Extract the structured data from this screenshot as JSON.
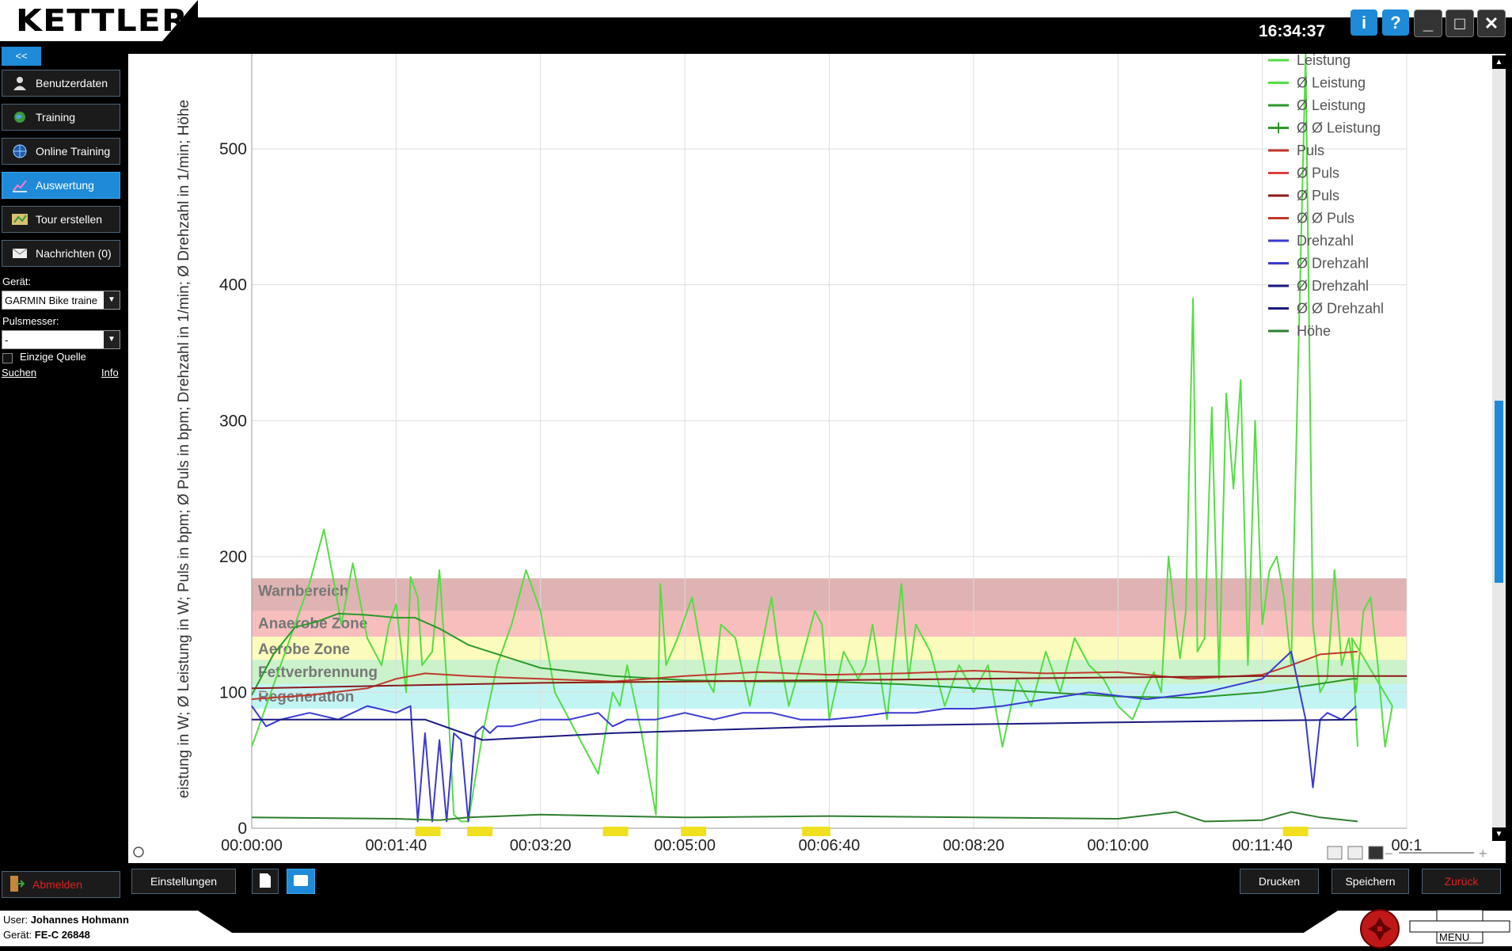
{
  "app": {
    "brand": "KETTLER",
    "clock": "16:34:37"
  },
  "window_buttons": {
    "info": "i",
    "help": "?",
    "minimize": "_",
    "maximize": "□",
    "close": "✕"
  },
  "sidebar": {
    "collapse_label": "<<",
    "nav": [
      {
        "label": "Benutzerdaten",
        "icon": "user-icon"
      },
      {
        "label": "Training",
        "icon": "globe-icon"
      },
      {
        "label": "Online Training",
        "icon": "globe-network-icon"
      },
      {
        "label": "Auswertung",
        "icon": "evaluation-chart-icon",
        "active": true
      },
      {
        "label": "Tour erstellen",
        "icon": "map-icon"
      },
      {
        "label": "Nachrichten (0)",
        "icon": "mail-icon"
      }
    ],
    "device_label": "Gerät:",
    "device_value": "GARMIN Bike traine",
    "hr_label": "Pulsmesser:",
    "hr_value": "-",
    "single_source_label": "Einzige Quelle",
    "search_link": "Suchen",
    "info_link": "Info",
    "logout_label": "Abmelden"
  },
  "bottom_buttons": {
    "settings": "Einstellungen",
    "print": "Drucken",
    "save": "Speichern",
    "back": "Zurück"
  },
  "footer": {
    "user_label": "User:",
    "user_name": "Johannes Hohmann",
    "device_label": "Gerät:",
    "device_name": "FE-C 26848",
    "menu_label": "MENU"
  },
  "colors": {
    "accent": "#1e8ad8",
    "logout": "#e02020",
    "leistung": "#55dd44",
    "avg_leistung": "#2a9a2a",
    "puls": "#c0392b",
    "drehzahl": "#3a3ad0",
    "hoehe": "#2f7d2f"
  },
  "chart_data": {
    "type": "line",
    "ylabel": "eistung in W; Ø Leistung in W; Puls in bpm; Ø Puls in bpm; Drehzahl in 1/min; Ø Drehzahl in 1/min; Höhe",
    "x_ticks": [
      "00:00:00",
      "00:01:40",
      "00:03:20",
      "00:05:00",
      "00:06:40",
      "00:08:20",
      "00:10:00",
      "00:11:40",
      "00:1"
    ],
    "y_ticks": [
      0,
      100,
      200,
      300,
      400,
      500
    ],
    "xlim": [
      0,
      800
    ],
    "ylim": [
      0,
      570
    ],
    "grid": true,
    "legend_position": "top-right",
    "zones": [
      {
        "label": "Warnbereich",
        "from": 160,
        "to": 184,
        "color": "#d9a6a6"
      },
      {
        "label": "Anaerobe Zone",
        "from": 141,
        "to": 160,
        "color": "#f7b3b3"
      },
      {
        "label": "Aerobe Zone",
        "from": 124,
        "to": 141,
        "color": "#fafab0"
      },
      {
        "label": "Fettverbrennung",
        "from": 106,
        "to": 124,
        "color": "#c2f0c2"
      },
      {
        "label": "Regeneration",
        "from": 88,
        "to": 106,
        "color": "#b8f2f2"
      }
    ],
    "legend": [
      {
        "name": "Leistung",
        "color": "#55dd44",
        "marker": "line"
      },
      {
        "name": "Ø Leistung",
        "color": "#55dd44",
        "marker": "line"
      },
      {
        "name": "Ø Leistung",
        "color": "#2a9a2a",
        "marker": "line"
      },
      {
        "name": "Ø Ø Leistung",
        "color": "#2a9a2a",
        "marker": "plus"
      },
      {
        "name": "Puls",
        "color": "#c0392b",
        "marker": "line"
      },
      {
        "name": "Ø Puls",
        "color": "#e04040",
        "marker": "line"
      },
      {
        "name": "Ø Puls",
        "color": "#8b1a1a",
        "marker": "line"
      },
      {
        "name": "Ø Ø Puls",
        "color": "#c0392b",
        "marker": "line"
      },
      {
        "name": "Drehzahl",
        "color": "#3a3ad0",
        "marker": "line"
      },
      {
        "name": "Ø Drehzahl",
        "color": "#3a3ad0",
        "marker": "line"
      },
      {
        "name": "Ø Drehzahl",
        "color": "#1a1a80",
        "marker": "line"
      },
      {
        "name": "Ø Ø Drehzahl",
        "color": "#1a1a80",
        "marker": "line"
      },
      {
        "name": "Höhe",
        "color": "#2f7d2f",
        "marker": "line"
      }
    ],
    "series": [
      {
        "name": "Leistung",
        "color": "#55dd44",
        "width": 2,
        "x": [
          0,
          10,
          20,
          30,
          40,
          50,
          58,
          62,
          70,
          80,
          90,
          95,
          100,
          107,
          110,
          115,
          118,
          125,
          130,
          135,
          140,
          145,
          150,
          160,
          170,
          180,
          190,
          200,
          210,
          220,
          230,
          240,
          250,
          255,
          260,
          270,
          280,
          283,
          287,
          295,
          305,
          315,
          320,
          325,
          335,
          345,
          360,
          365,
          372,
          380,
          390,
          395,
          400,
          410,
          420,
          425,
          430,
          440,
          450,
          455,
          460,
          470,
          480,
          490,
          500,
          510,
          520,
          530,
          540,
          550,
          560,
          570,
          580,
          590,
          600,
          610,
          620,
          625,
          630,
          635,
          640,
          643,
          647,
          652,
          655,
          660,
          665,
          670,
          675,
          680,
          685,
          690,
          695,
          700,
          705,
          710,
          715,
          720,
          725,
          730,
          735,
          740,
          745,
          750,
          755,
          760,
          765,
          770,
          775,
          780,
          785,
          790,
          762,
          766
        ],
        "y": [
          60,
          90,
          120,
          150,
          180,
          220,
          175,
          150,
          195,
          140,
          120,
          150,
          165,
          100,
          185,
          170,
          120,
          130,
          190,
          110,
          10,
          5,
          5,
          70,
          120,
          150,
          190,
          160,
          100,
          80,
          60,
          40,
          100,
          90,
          120,
          70,
          10,
          180,
          120,
          140,
          170,
          110,
          100,
          150,
          140,
          90,
          170,
          130,
          90,
          120,
          160,
          150,
          80,
          130,
          110,
          120,
          150,
          80,
          180,
          110,
          150,
          130,
          90,
          120,
          100,
          120,
          60,
          110,
          90,
          130,
          100,
          140,
          120,
          110,
          90,
          80,
          105,
          115,
          100,
          200,
          150,
          125,
          160,
          390,
          130,
          140,
          310,
          110,
          320,
          250,
          330,
          120,
          300,
          150,
          190,
          200,
          170,
          120,
          350,
          600,
          150,
          100,
          110,
          190,
          120,
          140,
          100,
          160,
          170,
          120,
          60,
          90,
          140,
          60
        ],
        "note": "approximate visual trace"
      },
      {
        "name": "Ø Leistung",
        "color": "#2a9a2a",
        "width": 2,
        "x": [
          0,
          15,
          30,
          45,
          60,
          80,
          100,
          113,
          130,
          150,
          200,
          250,
          300,
          350,
          400,
          450,
          500,
          550,
          600,
          650,
          700,
          750,
          762,
          766
        ],
        "y": [
          98,
          128,
          148,
          152,
          158,
          157,
          155,
          155,
          147,
          135,
          118,
          112,
          109,
          108,
          108,
          106,
          103,
          100,
          97,
          96,
          100,
          108,
          110,
          110
        ]
      },
      {
        "name": "Puls",
        "color": "#c0392b",
        "width": 2,
        "x": [
          0,
          40,
          80,
          100,
          120,
          150,
          200,
          250,
          300,
          350,
          400,
          450,
          500,
          550,
          600,
          650,
          700,
          720,
          740,
          766
        ],
        "y": [
          95,
          98,
          103,
          110,
          114,
          112,
          110,
          108,
          112,
          115,
          113,
          114,
          116,
          114,
          115,
          110,
          113,
          120,
          128,
          130
        ]
      },
      {
        "name": "Ø Puls",
        "color": "#8b1a1a",
        "width": 2,
        "x": [
          0,
          100,
          200,
          300,
          400,
          500,
          600,
          700,
          800
        ],
        "y": [
          103,
          105,
          107,
          108,
          109,
          110,
          111,
          112,
          112
        ]
      },
      {
        "name": "Drehzahl",
        "color": "#3a3ad0",
        "width": 2,
        "x": [
          0,
          10,
          20,
          40,
          60,
          80,
          100,
          110,
          115,
          120,
          125,
          130,
          135,
          140,
          145,
          150,
          155,
          160,
          165,
          170,
          180,
          200,
          220,
          240,
          250,
          260,
          280,
          300,
          320,
          340,
          360,
          380,
          400,
          420,
          440,
          460,
          480,
          500,
          520,
          550,
          580,
          620,
          660,
          700,
          720,
          730,
          735,
          740,
          745,
          755,
          765
        ],
        "y": [
          90,
          75,
          80,
          85,
          80,
          90,
          85,
          90,
          5,
          70,
          5,
          65,
          5,
          70,
          65,
          5,
          70,
          75,
          70,
          75,
          75,
          80,
          80,
          85,
          75,
          80,
          80,
          85,
          80,
          85,
          85,
          80,
          80,
          82,
          85,
          85,
          88,
          88,
          90,
          95,
          100,
          95,
          100,
          110,
          130,
          80,
          30,
          80,
          85,
          80,
          90
        ],
        "note": "approximate visual trace"
      },
      {
        "name": "Ø Drehzahl",
        "color": "#1a1a80",
        "width": 2,
        "x": [
          0,
          120,
          160,
          250,
          400,
          600,
          766
        ],
        "y": [
          80,
          80,
          65,
          70,
          75,
          78,
          80
        ]
      },
      {
        "name": "Höhe",
        "color": "#2f7d2f",
        "width": 2,
        "x": [
          0,
          100,
          130,
          150,
          200,
          300,
          400,
          500,
          600,
          640,
          660,
          700,
          720,
          740,
          766
        ],
        "y": [
          8,
          7,
          6,
          8,
          10,
          8,
          9,
          8,
          7,
          12,
          5,
          6,
          12,
          8,
          5
        ]
      }
    ],
    "yellow_markers_x": [
      122,
      158,
      252,
      306,
      390,
      392,
      723
    ]
  }
}
